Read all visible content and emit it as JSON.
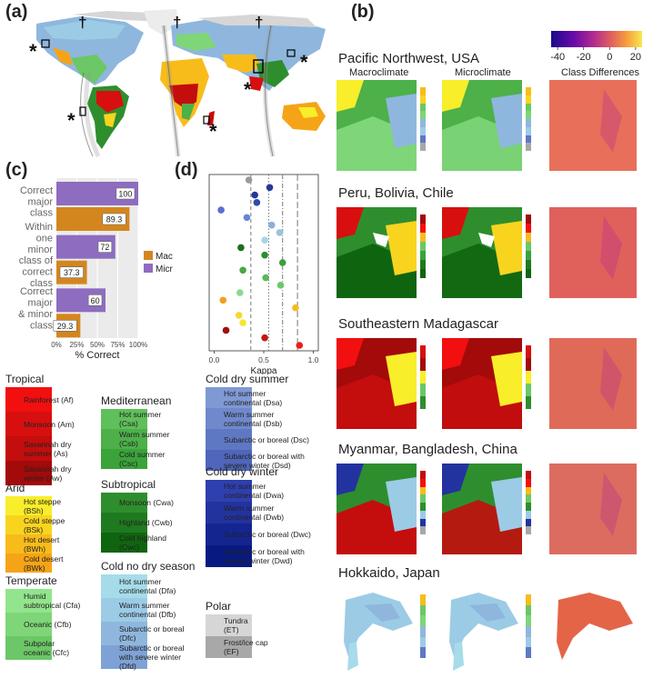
{
  "panels": {
    "a": "(a)",
    "b": "(b)",
    "c": "(c)",
    "d": "(d)"
  },
  "colorbar": {
    "ticks": [
      "-40",
      "-20",
      "0",
      "20"
    ],
    "min": -45,
    "max": 25,
    "colors": [
      "#1a0a8c",
      "#6a0aa8",
      "#b42e8c",
      "#e0605c",
      "#f7a13c",
      "#f8e850"
    ]
  },
  "map_headers": {
    "macro": "Macroclimate",
    "micro": "Microclimate",
    "diff": "Class Differences"
  },
  "regions": [
    {
      "title": "Pacific Northwest, USA"
    },
    {
      "title": "Peru, Bolivia, Chile"
    },
    {
      "title": "Southeastern Madagascar"
    },
    {
      "title": "Myanmar, Bangladesh, China"
    },
    {
      "title": "Hokkaido, Japan"
    }
  ],
  "chart_data": [
    {
      "type": "bar",
      "orientation": "horizontal",
      "categories": [
        "Correct major class",
        "Within one minor class of correct class",
        "Correct major & minor class"
      ],
      "series": [
        {
          "name": "Macro",
          "values": [
            89.3,
            37.3,
            29.3
          ],
          "color": "#d4861e"
        },
        {
          "name": "Micro",
          "values": [
            100,
            72,
            60
          ],
          "color": "#8e6cc0"
        }
      ],
      "xlabel": "% Correct",
      "xticks": [
        "0%",
        "25%",
        "50%",
        "75%",
        "100%"
      ],
      "xlim": [
        0,
        100
      ],
      "legend": "right"
    },
    {
      "type": "scatter",
      "xlabel": "Kappa",
      "xticks": [
        "0.0",
        "0.5",
        "1.0"
      ],
      "xlim": [
        -0.05,
        1.05
      ],
      "vlines": [
        {
          "x": 0.37,
          "style": "dash"
        },
        {
          "x": 0.55,
          "style": "dot"
        },
        {
          "x": 0.69,
          "style": "dashdot"
        },
        {
          "x": 0.84,
          "style": "longdash"
        }
      ],
      "points": [
        {
          "class": "EF",
          "kappa": 0.35,
          "color": "#9a9a9a"
        },
        {
          "class": "ET",
          "kappa": 0.56,
          "color": "#26379c"
        },
        {
          "class": "Dwd",
          "kappa": 0.41,
          "color": "#26379c"
        },
        {
          "class": "Dwc",
          "kappa": 0.43,
          "color": "#2d4cb0"
        },
        {
          "class": "Dwb",
          "kappa": 0.07,
          "color": "#5a6fd0"
        },
        {
          "class": "Dwa",
          "kappa": 0.33,
          "color": "#6a86d4"
        },
        {
          "class": "Dfd",
          "kappa": 0.58,
          "color": "#8ab0da"
        },
        {
          "class": "Dfc",
          "kappa": 0.66,
          "color": "#9ac4e0"
        },
        {
          "class": "Dfb",
          "kappa": 0.51,
          "color": "#a8d4e4"
        },
        {
          "class": "Cwc",
          "kappa": 0.27,
          "color": "#1e6e1e"
        },
        {
          "class": "Cwb",
          "kappa": 0.51,
          "color": "#2e8b2e"
        },
        {
          "class": "Csc",
          "kappa": 0.69,
          "color": "#3aa03a"
        },
        {
          "class": "Csb",
          "kappa": 0.29,
          "color": "#46a846"
        },
        {
          "class": "Csa",
          "kappa": 0.52,
          "color": "#58b858"
        },
        {
          "class": "Cfc",
          "kappa": 0.67,
          "color": "#6cc86c"
        },
        {
          "class": "Cfb",
          "kappa": 0.26,
          "color": "#8fd88f"
        },
        {
          "class": "BWk",
          "kappa": 0.09,
          "color": "#f0a020"
        },
        {
          "class": "BWh",
          "kappa": 0.82,
          "color": "#f4bc20"
        },
        {
          "class": "BSk",
          "kappa": 0.25,
          "color": "#f6d830"
        },
        {
          "class": "BSh",
          "kappa": 0.29,
          "color": "#f2e830"
        },
        {
          "class": "Aw",
          "kappa": 0.12,
          "color": "#9e1010"
        },
        {
          "class": "As",
          "kappa": 0.51,
          "color": "#c81414"
        },
        {
          "class": "Af",
          "kappa": 0.86,
          "color": "#f01a1a"
        }
      ]
    }
  ],
  "legend": {
    "tropical": {
      "title": "Tropical",
      "items": [
        {
          "label": "Rainforest (Af)",
          "color": "#f20f0f"
        },
        {
          "label": "Monsoon (Am)",
          "color": "#d80f0f"
        },
        {
          "label": "Savannah dry\nsummer (As)",
          "color": "#c40d0d"
        },
        {
          "label": "Savannah dry\nwinter (Aw)",
          "color": "#a30a0a"
        }
      ]
    },
    "arid": {
      "title": "Arid",
      "items": [
        {
          "label": "Hot steppe\n(BSh)",
          "color": "#f8ee2a"
        },
        {
          "label": "Cold steppe\n(BSk)",
          "color": "#f9d41f"
        },
        {
          "label": "Hot desert\n(BWh)",
          "color": "#f8bc1a"
        },
        {
          "label": "Cold desert\n(BWk)",
          "color": "#f6a417"
        }
      ]
    },
    "temperate": {
      "title": "Temperate",
      "items": [
        {
          "label": "Humid\nsubtropical (Cfa)",
          "color": "#92e58c"
        },
        {
          "label": "Oceanic (Cfb)",
          "color": "#7ed678"
        },
        {
          "label": "Subpolar\noceanic (Cfc)",
          "color": "#6cc766"
        }
      ]
    },
    "mediterranean": {
      "title": "Mediterranean",
      "items": [
        {
          "label": "Hot summer\n(Csa)",
          "color": "#5fbf5a"
        },
        {
          "label": "Warm summer\n(Csb)",
          "color": "#4db049"
        },
        {
          "label": "Cold summer\n(Csc)",
          "color": "#3aa33a"
        }
      ]
    },
    "subtropical": {
      "title": "Subtropical",
      "items": [
        {
          "label": "Monsoon (Cwa)",
          "color": "#2e8e2e"
        },
        {
          "label": "Highland (Cwb)",
          "color": "#1f7a1f"
        },
        {
          "label": "Cold highland\n(Cwc)",
          "color": "#0f650f"
        }
      ]
    },
    "cold_no_dry": {
      "title": "Cold no dry season",
      "items": [
        {
          "label": "Hot summer\ncontinental (Dfa)",
          "color": "#a6dcea"
        },
        {
          "label": "Warm summer\ncontinental (Dfb)",
          "color": "#9ccbe6"
        },
        {
          "label": "Subarctic or boreal\n(Dfc)",
          "color": "#8fb7dd"
        },
        {
          "label": "Subarctic or boreal\nwith severe winter\n(Dfd)",
          "color": "#7fa2d6"
        }
      ]
    },
    "cold_dry_summer": {
      "title": "Cold dry summer",
      "items": [
        {
          "label": "Hot summer\ncontinental (Dsa)",
          "color": "#7f99d4"
        },
        {
          "label": "Warm summer\ncontinental (Dsb)",
          "color": "#6f89cc"
        },
        {
          "label": "Subarctic or boreal (Dsc)",
          "color": "#5f78c4"
        },
        {
          "label": "Subarctic or boreal with\nsevere winter (Dsd)",
          "color": "#4f66ba"
        }
      ]
    },
    "cold_dry_winter": {
      "title": "Cold dry winter",
      "items": [
        {
          "label": "Hot summer\ncontinental (Dwa)",
          "color": "#2e3fae"
        },
        {
          "label": "Warm summer\ncontinental (Dwb)",
          "color": "#2233a0"
        },
        {
          "label": "Subarctic or boreal (Dwc)",
          "color": "#142590"
        },
        {
          "label": "Subarctic or boreal with\nsevere winter (Dwd)",
          "color": "#081a82"
        }
      ]
    },
    "polar": {
      "title": "Polar",
      "items": [
        {
          "label": "Tundra\n(ET)",
          "color": "#d6d6d6"
        },
        {
          "label": "Frost/ice cap\n(EF)",
          "color": "#a8a8a8"
        }
      ]
    }
  },
  "world_map": {
    "daggers": [
      "†",
      "†",
      "†"
    ],
    "stars": [
      "*",
      "*",
      "*",
      "*",
      "*"
    ]
  }
}
